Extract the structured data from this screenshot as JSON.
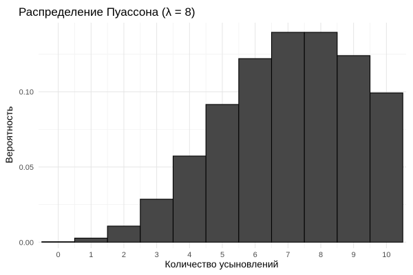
{
  "chart_data": {
    "type": "bar",
    "title": "Распределение Пуассона (λ = 8)",
    "xlabel": "Количество усыновлений",
    "ylabel": "Вероятность",
    "categories": [
      "0",
      "1",
      "2",
      "3",
      "4",
      "5",
      "6",
      "7",
      "8",
      "9",
      "10"
    ],
    "values": [
      0.0003,
      0.0027,
      0.0107,
      0.0286,
      0.0573,
      0.0916,
      0.1221,
      0.1396,
      0.1396,
      0.1241,
      0.0993
    ],
    "ylim": [
      -0.004,
      0.146
    ],
    "yticks": [
      0.0,
      0.05,
      0.1
    ],
    "ytick_labels": [
      "0.00",
      "0.05",
      "0.10"
    ],
    "grid": true,
    "colors": {
      "bar_fill": "#474747",
      "bar_outline": "#000000"
    }
  }
}
